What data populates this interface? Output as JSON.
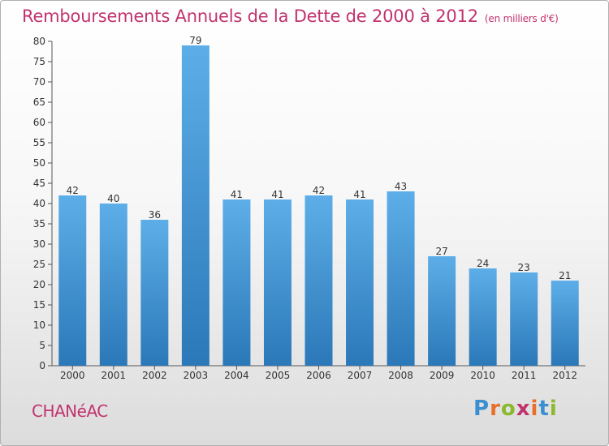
{
  "header": {
    "title": "Remboursements Annuels de la Dette de 2000 à 2012",
    "subtitle": "(en milliers d'€)"
  },
  "footer": {
    "commune": "CHANéAC",
    "logo": "Proxiti"
  },
  "colors": {
    "title": "#c2336e",
    "bar_top": "#5daee8",
    "bar_bottom": "#2b78b8",
    "logo_letters": [
      "#3b8fd0",
      "#e8702a",
      "#8bb92d",
      "#c2336e",
      "#e8702a",
      "#3b8fd0",
      "#8bb92d"
    ]
  },
  "chart_data": {
    "type": "bar",
    "categories": [
      "2000",
      "2001",
      "2002",
      "2003",
      "2004",
      "2005",
      "2006",
      "2007",
      "2008",
      "2009",
      "2010",
      "2011",
      "2012"
    ],
    "values": [
      42,
      40,
      36,
      79,
      41,
      41,
      42,
      41,
      43,
      27,
      24,
      23,
      21
    ],
    "yticks": [
      0,
      5,
      10,
      15,
      20,
      25,
      30,
      35,
      40,
      45,
      50,
      55,
      60,
      65,
      70,
      75,
      80
    ],
    "ylim": [
      0,
      80
    ],
    "grid": false,
    "legend": "none"
  }
}
